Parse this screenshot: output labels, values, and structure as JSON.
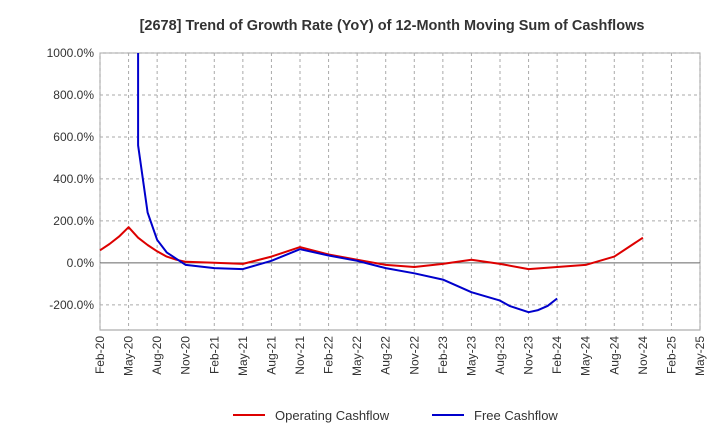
{
  "chart_data": {
    "type": "line",
    "title": "[2678]  Trend of Growth Rate (YoY) of 12-Month Moving Sum of Cashflows",
    "xlabel": "",
    "ylabel": "",
    "ylim": [
      -320,
      1000
    ],
    "yticks": [
      -200,
      0,
      200,
      400,
      600,
      800,
      1000
    ],
    "ytick_labels": [
      "-200.0%",
      "0.0%",
      "200.0%",
      "400.0%",
      "600.0%",
      "800.0%",
      "1000.0%"
    ],
    "categories": [
      "Feb-20",
      "May-20",
      "Aug-20",
      "Nov-20",
      "Feb-21",
      "May-21",
      "Aug-21",
      "Nov-21",
      "Feb-22",
      "May-22",
      "Aug-22",
      "Nov-22",
      "Feb-23",
      "May-23",
      "Aug-23",
      "Nov-23",
      "Feb-24",
      "May-24",
      "Aug-24",
      "Nov-24",
      "Feb-25",
      "May-25"
    ],
    "grid": true,
    "legend_position": "bottom",
    "series": [
      {
        "name": "Operating Cashflow",
        "color": "#dd0000",
        "points": [
          [
            "Feb-20",
            60
          ],
          [
            "Mar-20",
            90
          ],
          [
            "Apr-20",
            125
          ],
          [
            "May-20",
            170
          ],
          [
            "Jun-20",
            120
          ],
          [
            "Jul-20",
            85
          ],
          [
            "Aug-20",
            55
          ],
          [
            "Sep-20",
            30
          ],
          [
            "Oct-20",
            15
          ],
          [
            "Nov-20",
            5
          ],
          [
            "Feb-21",
            0
          ],
          [
            "May-21",
            -5
          ],
          [
            "Aug-21",
            30
          ],
          [
            "Nov-21",
            75
          ],
          [
            "Feb-22",
            40
          ],
          [
            "May-22",
            15
          ],
          [
            "Aug-22",
            -10
          ],
          [
            "Nov-22",
            -20
          ],
          [
            "Feb-23",
            -5
          ],
          [
            "May-23",
            15
          ],
          [
            "Aug-23",
            -5
          ],
          [
            "Nov-23",
            -30
          ],
          [
            "Feb-24",
            -20
          ],
          [
            "May-24",
            -10
          ],
          [
            "Aug-24",
            30
          ],
          [
            "Nov-24",
            120
          ]
        ]
      },
      {
        "name": "Free Cashflow",
        "color": "#0000cc",
        "points": [
          [
            "Jun-20",
            1000
          ],
          [
            "Jun-20",
            560
          ],
          [
            "Jul-20",
            240
          ],
          [
            "Aug-20",
            110
          ],
          [
            "Sep-20",
            50
          ],
          [
            "Oct-20",
            20
          ],
          [
            "Nov-20",
            -10
          ],
          [
            "Feb-21",
            -25
          ],
          [
            "May-21",
            -30
          ],
          [
            "Aug-21",
            10
          ],
          [
            "Nov-21",
            65
          ],
          [
            "Feb-22",
            35
          ],
          [
            "May-22",
            10
          ],
          [
            "Aug-22",
            -25
          ],
          [
            "Nov-22",
            -50
          ],
          [
            "Feb-23",
            -80
          ],
          [
            "May-23",
            -140
          ],
          [
            "Aug-23",
            -180
          ],
          [
            "Sep-23",
            -205
          ],
          [
            "Nov-23",
            -235
          ],
          [
            "Dec-23",
            -225
          ],
          [
            "Jan-24",
            -205
          ],
          [
            "Feb-24",
            -170
          ]
        ]
      }
    ]
  }
}
